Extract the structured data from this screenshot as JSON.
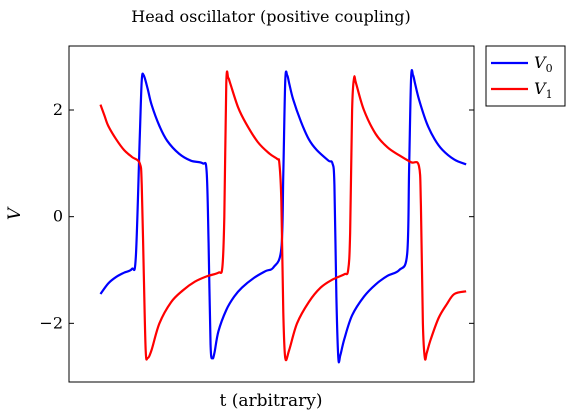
{
  "chart_data": {
    "type": "line",
    "title": "Head oscillator (positive coupling)",
    "xlabel": "t (arbitrary)",
    "ylabel": "V",
    "ylim": [
      -3.1,
      3.2
    ],
    "xlim": [
      -0.8,
      9.5
    ],
    "yticks": [
      -2,
      0,
      2
    ],
    "ytick_labels": [
      "−2",
      "0",
      "2"
    ],
    "x_ticks_shown": false,
    "grid": false,
    "legend_placement": "outside-top-right",
    "series": [
      {
        "name": "V0",
        "name_base": "V",
        "name_sub": "0",
        "color": "#0000ff",
        "x": [
          0.0,
          0.2,
          0.4,
          0.6,
          0.8,
          0.9,
          1.0,
          1.05,
          1.1,
          1.2,
          1.3,
          1.5,
          1.7,
          2.0,
          2.3,
          2.6,
          2.7,
          2.75,
          2.8,
          2.85,
          2.9,
          3.0,
          3.2,
          3.4,
          3.6,
          3.9,
          4.2,
          4.4,
          4.6,
          4.65,
          4.7,
          4.75,
          4.8,
          4.9,
          5.1,
          5.3,
          5.5,
          5.8,
          5.9,
          5.95,
          6.0,
          6.05,
          6.1,
          6.2,
          6.4,
          6.7,
          7.0,
          7.3,
          7.6,
          7.8,
          7.85,
          7.9,
          7.95,
          8.0,
          8.1,
          8.3,
          8.5,
          8.7,
          9.0,
          9.3
        ],
        "values": [
          -1.45,
          -1.25,
          -1.13,
          -1.05,
          -0.98,
          -0.75,
          1.5,
          2.55,
          2.65,
          2.4,
          2.1,
          1.7,
          1.42,
          1.18,
          1.05,
          1.0,
          0.85,
          -0.5,
          -2.4,
          -2.65,
          -2.55,
          -2.15,
          -1.75,
          -1.5,
          -1.33,
          -1.15,
          -1.02,
          -0.95,
          -0.6,
          0.8,
          2.55,
          2.65,
          2.5,
          2.2,
          1.78,
          1.45,
          1.25,
          1.05,
          1.0,
          0.6,
          -1.5,
          -2.65,
          -2.6,
          -2.3,
          -1.85,
          -1.5,
          -1.27,
          -1.11,
          -1.0,
          -0.7,
          0.9,
          2.6,
          2.65,
          2.5,
          2.2,
          1.75,
          1.45,
          1.25,
          1.07,
          0.98
        ]
      },
      {
        "name": "V1",
        "name_base": "V",
        "name_sub": "1",
        "color": "#ff0000",
        "x": [
          0.0,
          0.1,
          0.2,
          0.4,
          0.6,
          0.8,
          1.0,
          1.05,
          1.1,
          1.15,
          1.2,
          1.3,
          1.5,
          1.8,
          2.1,
          2.4,
          2.7,
          3.0,
          3.1,
          3.15,
          3.2,
          3.25,
          3.3,
          3.5,
          3.7,
          4.0,
          4.3,
          4.5,
          4.55,
          4.6,
          4.65,
          4.7,
          4.8,
          5.0,
          5.3,
          5.6,
          5.9,
          6.2,
          6.3,
          6.35,
          6.4,
          6.45,
          6.5,
          6.7,
          7.0,
          7.3,
          7.6,
          7.9,
          8.1,
          8.15,
          8.2,
          8.25,
          8.3,
          8.4,
          8.6,
          8.8,
          9.0,
          9.3
        ],
        "values": [
          2.1,
          1.9,
          1.7,
          1.45,
          1.25,
          1.12,
          1.0,
          0.6,
          -1.0,
          -2.5,
          -2.65,
          -2.5,
          -2.0,
          -1.6,
          -1.38,
          -1.22,
          -1.12,
          -1.05,
          -0.95,
          0.0,
          2.5,
          2.6,
          2.5,
          2.05,
          1.75,
          1.4,
          1.18,
          1.08,
          1.0,
          0.3,
          -1.8,
          -2.65,
          -2.5,
          -2.0,
          -1.6,
          -1.33,
          -1.18,
          -1.08,
          -1.0,
          -0.3,
          2.0,
          2.6,
          2.5,
          2.0,
          1.55,
          1.3,
          1.15,
          1.02,
          0.95,
          0.2,
          -2.0,
          -2.65,
          -2.55,
          -2.3,
          -1.9,
          -1.65,
          -1.45,
          -1.4
        ]
      }
    ]
  }
}
